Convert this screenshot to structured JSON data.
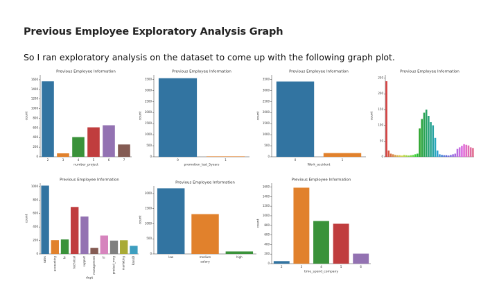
{
  "slide": {
    "title": "Previous Employee Exploratory Analysis Graph",
    "text": "So I ran exploratory analysis on the dataset to come up with the following graph plot."
  },
  "chart_data": [
    {
      "type": "bar",
      "title": "Previous Employee Information",
      "y_label": "count",
      "x_label": "number_project",
      "categories": [
        "2",
        "3",
        "4",
        "5",
        "6",
        "7"
      ],
      "values": [
        1567,
        72,
        409,
        612,
        655,
        256
      ],
      "colors": [
        "#3274a1",
        "#e1812c",
        "#3a923a",
        "#c03d3e",
        "#9372b2",
        "#845b53"
      ],
      "ylim": [
        0,
        1700
      ],
      "yticks": [
        0,
        200,
        400,
        600,
        800,
        1000,
        1200,
        1400,
        1600
      ]
    },
    {
      "type": "bar",
      "title": "Previous Employee Information",
      "y_label": "count",
      "x_label": "promotion_last_5years",
      "categories": [
        "0",
        "1"
      ],
      "values": [
        3552,
        19
      ],
      "colors": [
        "#3274a1",
        "#e1812c"
      ],
      "ylim": [
        0,
        3700
      ],
      "yticks": [
        0,
        500,
        1000,
        1500,
        2000,
        2500,
        3000,
        3500
      ]
    },
    {
      "type": "bar",
      "title": "Previous Employee Information",
      "y_label": "count",
      "x_label": "Work_accident",
      "categories": [
        "0",
        "1"
      ],
      "values": [
        3402,
        169
      ],
      "colors": [
        "#3274a1",
        "#e1812c"
      ],
      "ylim": [
        0,
        3700
      ],
      "yticks": [
        0,
        500,
        1000,
        1500,
        2000,
        2500,
        3000,
        3500
      ]
    },
    {
      "type": "bar",
      "title": "Previous Employee Information",
      "y_label": "count",
      "categories": [
        null,
        null,
        null,
        null,
        null,
        null,
        null,
        null,
        null,
        null,
        null,
        null,
        null,
        null,
        null,
        null,
        null,
        null,
        null,
        null,
        null,
        null,
        null,
        null,
        null,
        null,
        null,
        null,
        null,
        null,
        null,
        null,
        null,
        null,
        null,
        null,
        null,
        null,
        null,
        null
      ],
      "values": [
        240,
        20,
        10,
        8,
        6,
        5,
        5,
        4,
        6,
        5,
        4,
        5,
        6,
        8,
        10,
        90,
        120,
        140,
        150,
        130,
        110,
        100,
        60,
        20,
        8,
        6,
        5,
        5,
        4,
        6,
        8,
        10,
        25,
        30,
        35,
        40,
        38,
        36,
        30,
        28
      ],
      "colors": [
        "hsl(0,65%,55%)",
        "hsl(9,65%,55%)",
        "hsl(18,65%,55%)",
        "hsl(27,65%,55%)",
        "hsl(36,65%,55%)",
        "hsl(45,65%,55%)",
        "hsl(54,65%,55%)",
        "hsl(63,65%,55%)",
        "hsl(72,65%,55%)",
        "hsl(81,65%,55%)",
        "hsl(90,65%,55%)",
        "hsl(99,65%,55%)",
        "hsl(108,65%,55%)",
        "hsl(117,65%,50%)",
        "hsl(126,65%,45%)",
        "hsl(120,60%,40%)",
        "hsl(130,60%,40%)",
        "hsl(140,60%,40%)",
        "hsl(150,60%,40%)",
        "hsl(160,60%,40%)",
        "hsl(170,60%,40%)",
        "hsl(180,60%,40%)",
        "hsl(189,65%,45%)",
        "hsl(198,65%,50%)",
        "hsl(207,65%,55%)",
        "hsl(216,65%,55%)",
        "hsl(225,65%,60%)",
        "hsl(234,65%,60%)",
        "hsl(243,65%,65%)",
        "hsl(252,65%,65%)",
        "hsl(261,65%,65%)",
        "hsl(270,65%,65%)",
        "hsl(279,65%,65%)",
        "hsl(288,65%,65%)",
        "hsl(297,65%,65%)",
        "hsl(306,65%,65%)",
        "hsl(315,65%,65%)",
        "hsl(324,65%,65%)",
        "hsl(333,65%,65%)",
        "hsl(342,65%,65%)"
      ],
      "ylim": [
        0,
        260
      ],
      "yticks": [
        0,
        50,
        100,
        150,
        200,
        250
      ]
    },
    {
      "type": "bar",
      "title": "Previous Employee Information",
      "y_label": "count",
      "x_label": "dept",
      "categories": [
        "sales",
        "accounting",
        "hr",
        "technical",
        "support",
        "management",
        "IT",
        "product_mng",
        "marketing",
        "RandD"
      ],
      "values": [
        1014,
        204,
        215,
        697,
        555,
        91,
        273,
        198,
        203,
        121
      ],
      "colors": [
        "#3274a1",
        "#e1812c",
        "#3a923a",
        "#c03d3e",
        "#9372b2",
        "#845b53",
        "#d684bd",
        "#7f7f7f",
        "#a9aa35",
        "#3d9ebf"
      ],
      "ylim": [
        0,
        1050
      ],
      "yticks": [
        0,
        200,
        400,
        600,
        800,
        1000
      ]
    },
    {
      "type": "bar",
      "title": "Previous Employee Information",
      "y_label": "count",
      "x_label": "salary",
      "categories": [
        "low",
        "medium",
        "high"
      ],
      "values": [
        2172,
        1317,
        82
      ],
      "colors": [
        "#3274a1",
        "#e1812c",
        "#3a923a"
      ],
      "ylim": [
        0,
        2250
      ],
      "yticks": [
        0,
        500,
        1000,
        1500,
        2000
      ]
    },
    {
      "type": "bar",
      "title": "Previous Employee Information",
      "y_label": "count",
      "x_label": "time_spend_company",
      "categories": [
        "2",
        "3",
        "4",
        "5",
        "6"
      ],
      "values": [
        53,
        1586,
        890,
        833,
        209
      ],
      "colors": [
        "#3274a1",
        "#e1812c",
        "#3a923a",
        "#c03d3e",
        "#9372b2"
      ],
      "ylim": [
        0,
        1680
      ],
      "yticks": [
        0,
        200,
        400,
        600,
        800,
        1000,
        1200,
        1400,
        1600
      ]
    }
  ]
}
